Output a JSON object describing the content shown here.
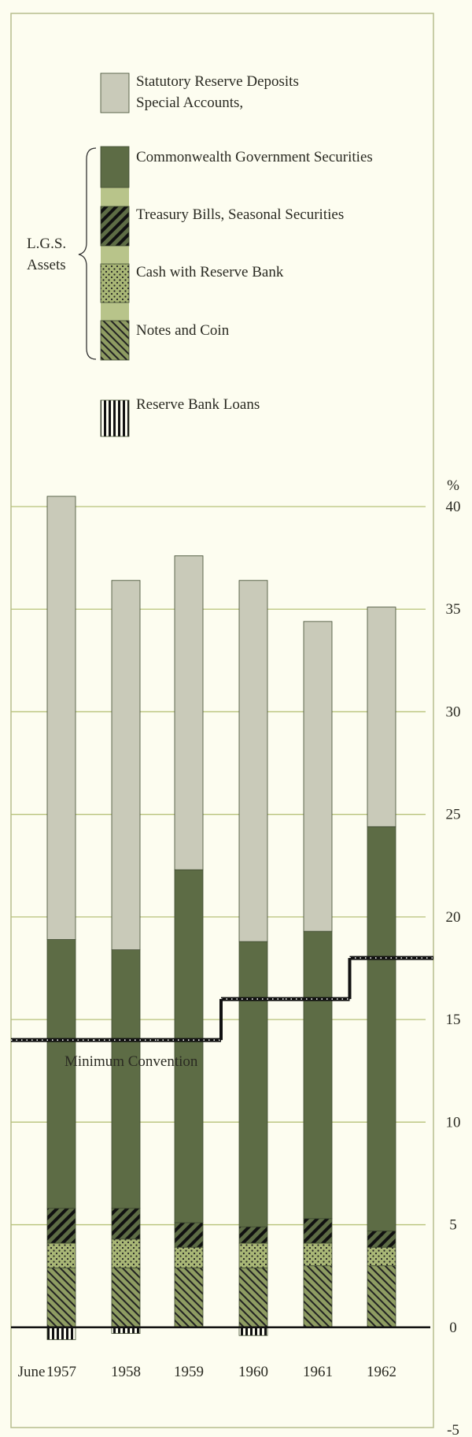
{
  "chart_data": {
    "type": "stacked-bar",
    "categories": [
      "1957",
      "1958",
      "1959",
      "1960",
      "1961",
      "1962"
    ],
    "x_prefix": "June",
    "y_unit": "%",
    "series": [
      {
        "name": "Statutory Reserve Deposits\nSpecial Accounts,",
        "color": "#c9cab9",
        "pattern": "solid",
        "values": [
          21.6,
          18.0,
          15.3,
          17.6,
          15.1,
          10.7
        ]
      },
      {
        "name": "Commonwealth Government Securities",
        "color": "#5d6c45",
        "pattern": "solid",
        "values": [
          13.1,
          12.6,
          17.2,
          13.9,
          14.0,
          19.7
        ]
      },
      {
        "name": "Treasury Bills, Seasonal Securities",
        "color": "#5d6c45",
        "pattern": "thick-hatch",
        "values": [
          1.7,
          1.5,
          1.2,
          0.8,
          1.2,
          0.8
        ]
      },
      {
        "name": "Cash with Reserve Bank",
        "color": "#a9b776",
        "pattern": "dots",
        "values": [
          1.2,
          1.4,
          1.0,
          1.2,
          1.1,
          0.9
        ]
      },
      {
        "name": "Notes and Coin",
        "color": "#8e9c62",
        "pattern": "hatch",
        "values": [
          2.9,
          2.9,
          2.9,
          2.9,
          3.0,
          3.0
        ]
      },
      {
        "name": "Reserve Bank Loans",
        "color": "#111111",
        "pattern": "stripes",
        "values": [
          -0.6,
          -0.3,
          null,
          -0.4,
          null,
          null
        ]
      }
    ],
    "brace_label": "L.G.S.\nAssets",
    "minimum_convention": {
      "name": "Minimum Convention",
      "values": [
        14,
        14,
        14,
        16,
        16,
        18
      ]
    },
    "ylim": [
      -5,
      40
    ],
    "yticks": [
      -5,
      0,
      5,
      10,
      15,
      20,
      25,
      30,
      35,
      40
    ],
    "grid": true
  }
}
